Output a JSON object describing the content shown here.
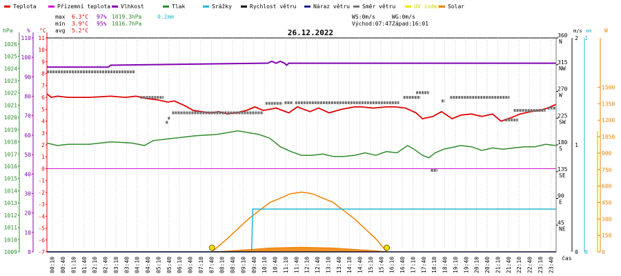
{
  "legend": [
    {
      "label": "Teplota",
      "color": "#e00000"
    },
    {
      "label": "Přízemní teplota",
      "color": "#d000d0"
    },
    {
      "label": "Vlhkost",
      "color": "#8000b0"
    },
    {
      "label": "Tlak",
      "color": "#2e8b2e"
    },
    {
      "label": "Srážky",
      "color": "#20b8d0"
    },
    {
      "label": "Rychlost větru",
      "color": "#000000"
    },
    {
      "label": "Náraz větru",
      "color": "#20208a"
    },
    {
      "label": "Směr větru",
      "color": "#707070"
    },
    {
      "label": "UV index",
      "color": "#e8e800"
    },
    {
      "label": "Solar",
      "color": "#f08000"
    }
  ],
  "stats": {
    "max_label": "max",
    "max_temp": "6.3°C",
    "max_hum": "97%",
    "max_press": "1019.3hPa",
    "max_rain": "0.2mm",
    "min_label": "min",
    "min_temp": "3.9°C",
    "min_hum": "95%",
    "min_press": "1016.7hPa",
    "avg_label": "avg",
    "avg_temp": "5.2°C",
    "ws": "WS:0m/s",
    "wg": "WG:0m/s",
    "sunrise": "Východ:07:47",
    "sunset": "Západ:16:01"
  },
  "chart_data": {
    "type": "line",
    "title": "26.12.2022",
    "x_unit_label": "čas",
    "x_ticks": [
      "00:10",
      "00:40",
      "01:10",
      "01:40",
      "02:10",
      "02:40",
      "03:10",
      "03:40",
      "04:10",
      "04:40",
      "05:10",
      "05:40",
      "06:10",
      "06:40",
      "07:10",
      "07:40",
      "08:10",
      "08:40",
      "09:10",
      "09:40",
      "10:10",
      "10:40",
      "11:10",
      "11:40",
      "12:10",
      "12:40",
      "13:10",
      "13:40",
      "14:10",
      "14:40",
      "15:10",
      "15:40",
      "16:10",
      "16:40",
      "17:10",
      "17:40",
      "18:10",
      "18:40",
      "19:10",
      "19:40",
      "20:10",
      "20:40",
      "21:10",
      "21:40",
      "22:10",
      "22:40",
      "23:10",
      "23:40"
    ],
    "axes": {
      "pressure": {
        "unit": "hPa",
        "ticks": [
          "1026",
          "1025",
          "1024",
          "1023",
          "1022",
          "1021",
          "1020",
          "1019",
          "1018",
          "1017",
          "1016",
          "1015",
          "1014",
          "1013",
          "1012",
          "1011",
          "1010",
          "1009"
        ],
        "range": [
          1009,
          1026.5
        ]
      },
      "humidity": {
        "unit": "%",
        "ticks": [
          "110",
          "100",
          "90",
          "80",
          "70",
          "60",
          "50",
          "40",
          "30",
          "20",
          "10",
          "0"
        ],
        "range": [
          0,
          110
        ]
      },
      "temperature": {
        "unit": "°C",
        "ticks": [
          "11",
          "10",
          "9",
          "8",
          "7",
          "6",
          "5",
          "4",
          "3",
          "2",
          "1",
          "0",
          "-1",
          "-2",
          "-3",
          "-4",
          "-5",
          "-6",
          "-7"
        ],
        "range": [
          -7,
          11
        ]
      },
      "wind_dir": {
        "ticks": [
          {
            "deg": "360",
            "dir": "N"
          },
          {
            "deg": "315",
            "dir": "NW"
          },
          {
            "deg": "270",
            "dir": "W"
          },
          {
            "deg": "225",
            "dir": "SW"
          },
          {
            "deg": "180",
            "dir": "S"
          },
          {
            "deg": "135",
            "dir": "SE"
          },
          {
            "deg": "90",
            "dir": "E"
          },
          {
            "deg": "45",
            "dir": "NE"
          }
        ],
        "range": [
          0,
          360
        ]
      },
      "wind_speed": {
        "unit": "m/s",
        "ticks": [
          "2",
          "1",
          "0"
        ],
        "range": [
          0,
          2
        ]
      },
      "rain": {
        "unit": "mm",
        "ticks": [
          "1",
          "0"
        ],
        "range": [
          0,
          1
        ]
      },
      "solar": {
        "unit": "W",
        "ticks": [
          "1500",
          "1350",
          "1200",
          "1050",
          "900",
          "750",
          "600",
          "450",
          "300",
          "150",
          "0"
        ],
        "range": [
          0,
          1950
        ]
      }
    },
    "series": {
      "temperature": {
        "name": "Teplota",
        "color": "#e00000",
        "x": [
          0,
          0.2,
          0.5,
          1,
          2,
          3,
          3.7,
          4.2,
          4.7,
          5.2,
          5.7,
          6,
          6.5,
          6.9,
          7.3,
          7.7,
          8.1,
          8.5,
          8.9,
          9.4,
          9.8,
          10.2,
          10.8,
          11.4,
          11.8,
          12.4,
          12.8,
          13.3,
          13.9,
          14.5,
          14.8,
          15.4,
          16,
          16.4,
          16.9,
          17.4,
          17.7,
          18.2,
          18.6,
          19.1,
          19.5,
          20,
          20.5,
          21,
          21.4,
          21.9,
          22.3,
          22.8,
          23.2,
          23.6,
          23.98
        ],
        "y": [
          6.3,
          6.0,
          6.1,
          6.0,
          6.0,
          6.1,
          6.0,
          6.1,
          5.9,
          5.8,
          5.6,
          5.7,
          5.3,
          4.9,
          4.8,
          4.7,
          4.8,
          4.6,
          4.7,
          4.9,
          5.2,
          4.9,
          5.1,
          4.7,
          5.2,
          4.8,
          5.1,
          4.7,
          5.0,
          5.2,
          5.2,
          5.1,
          5.2,
          5.2,
          5.1,
          4.7,
          4.2,
          4.4,
          4.8,
          4.2,
          4.5,
          4.6,
          4.4,
          4.6,
          4.0,
          4.3,
          4.6,
          4.8,
          4.9,
          5.1,
          5.4
        ]
      },
      "ground_temperature": {
        "name": "Přízemní teplota",
        "color": "#d000d0",
        "x": [
          0,
          23.98
        ],
        "y": [
          0,
          0
        ]
      },
      "humidity": {
        "name": "Vlhkost",
        "color": "#8000b0",
        "x": [
          0,
          2.9,
          3.0,
          10.4,
          10.6,
          10.8,
          11.0,
          11.2,
          11.3,
          11.4,
          11.6,
          23.98
        ],
        "y": [
          95,
          95,
          96,
          97,
          98,
          97,
          98,
          97,
          96,
          97,
          97,
          97
        ]
      },
      "pressure": {
        "name": "Tlak",
        "color": "#2e8b2e",
        "x": [
          0,
          0.5,
          1,
          2,
          3,
          4,
          4.6,
          5,
          6,
          7,
          8,
          9,
          10,
          10.5,
          11,
          11.5,
          12,
          12.5,
          13,
          13.5,
          14,
          14.5,
          15,
          15.5,
          16,
          16.5,
          17,
          17.3,
          17.7,
          18,
          18.3,
          18.7,
          19,
          19.5,
          20,
          20.5,
          21,
          21.5,
          22,
          22.5,
          23,
          23.5,
          23.98
        ],
        "y": [
          1017.9,
          1017.7,
          1017.8,
          1017.8,
          1018.0,
          1017.9,
          1017.7,
          1018.1,
          1018.3,
          1018.5,
          1018.6,
          1018.9,
          1018.6,
          1018.3,
          1017.6,
          1017.2,
          1016.9,
          1016.9,
          1017.0,
          1016.8,
          1016.8,
          1016.9,
          1017.1,
          1016.9,
          1017.2,
          1017.1,
          1017.7,
          1017.4,
          1016.9,
          1016.7,
          1017.1,
          1017.4,
          1017.5,
          1017.7,
          1017.6,
          1017.3,
          1017.5,
          1017.4,
          1017.5,
          1017.6,
          1017.6,
          1017.8,
          1017.7
        ]
      },
      "rain": {
        "name": "Srážky",
        "color": "#20b8d0",
        "x": [
          0,
          9.65,
          9.7,
          23.98
        ],
        "y": [
          0,
          0,
          0.2,
          0.2
        ]
      },
      "wind_speed": {
        "name": "Rychlost větru",
        "color": "#000000",
        "x": [
          0,
          23.98
        ],
        "y": [
          0,
          0
        ]
      },
      "wind_gust": {
        "name": "Náraz větru",
        "color": "#20208a",
        "x": [
          0,
          23.98
        ],
        "y": [
          0,
          0
        ]
      },
      "solar": {
        "name": "Solar",
        "color": "#f08000",
        "x": [
          7.78,
          8.5,
          9.5,
          10.5,
          11.5,
          12.0,
          12.5,
          13.5,
          14.5,
          15.5,
          16.02
        ],
        "y": [
          0,
          120,
          300,
          450,
          530,
          545,
          530,
          450,
          300,
          120,
          0
        ]
      },
      "solar_measured": {
        "name": "Solar",
        "color": "#f08000",
        "x": [
          7.78,
          8.5,
          9.5,
          10.5,
          11.5,
          12.0,
          12.5,
          13.5,
          14.5,
          15.5,
          16.02
        ],
        "y": [
          0,
          8,
          20,
          35,
          40,
          42,
          40,
          35,
          22,
          10,
          0
        ]
      },
      "uv_index": {
        "name": "UV index",
        "color": "#e8e800",
        "x": [
          7.78,
          16.02
        ],
        "y": [
          0,
          0
        ]
      },
      "wind_direction": {
        "name": "Směr větru",
        "color": "#707070",
        "segments": [
          {
            "x": [
              0,
              4.15
            ],
            "y": [
              303
            ]
          },
          {
            "x": [
              4.4,
              5.5
            ],
            "y": [
              260
            ]
          },
          {
            "x": [
              5.6,
              5.7
            ],
            "y": [
              218
            ]
          },
          {
            "x": [
              5.7,
              5.8
            ],
            "y": [
              225
            ]
          },
          {
            "x": [
              5.9,
              10.2
            ],
            "y": [
              234
            ]
          },
          {
            "x": [
              10.3,
              11.1
            ],
            "y": [
              250
            ]
          },
          {
            "x": [
              11.2,
              11.6
            ],
            "y": [
              251
            ]
          },
          {
            "x": [
              11.7,
              16.6
            ],
            "y": [
              251
            ]
          },
          {
            "x": [
              16.8,
              17.6
            ],
            "y": [
              260
            ]
          },
          {
            "x": [
              17.4,
              18.0
            ],
            "y": [
              268
            ]
          },
          {
            "x": [
              18.1,
              18.4
            ],
            "y": [
              137
            ]
          },
          {
            "x": [
              18.6,
              18.75
            ],
            "y": [
              254
            ]
          },
          {
            "x": [
              19.0,
              21.8
            ],
            "y": [
              260
            ]
          },
          {
            "x": [
              21.6,
              22.2
            ],
            "y": [
              222
            ]
          },
          {
            "x": [
              22.0,
              23.5
            ],
            "y": [
              238
            ]
          },
          {
            "x": [
              23.6,
              23.98
            ],
            "y": [
              242
            ]
          }
        ]
      },
      "sun_markers": {
        "x": [
          7.78,
          16.02
        ]
      }
    }
  }
}
